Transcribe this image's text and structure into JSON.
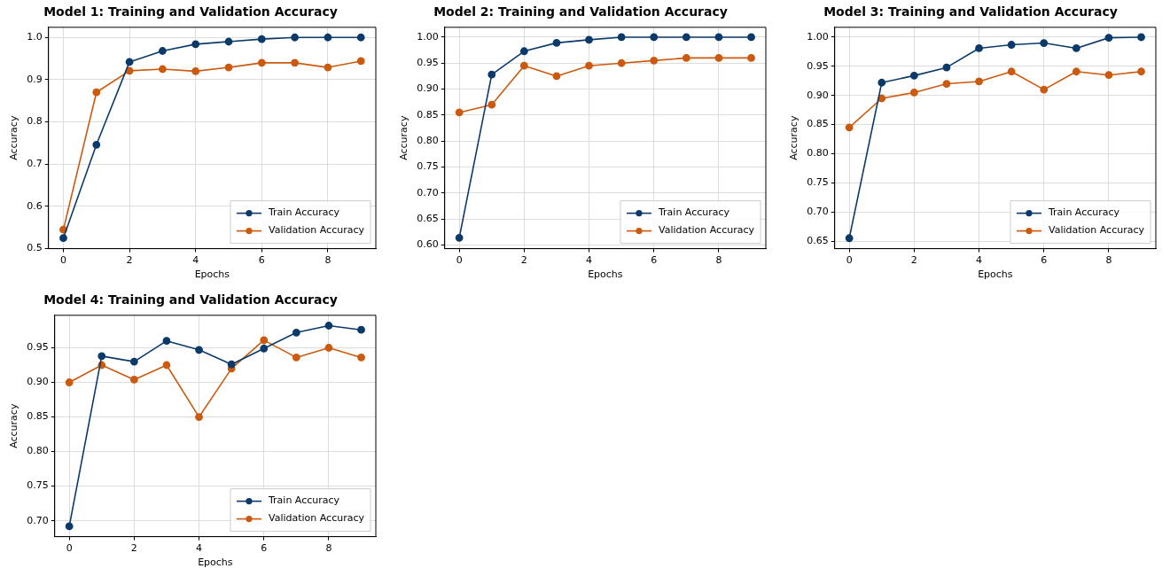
{
  "chart_data": [
    {
      "type": "line",
      "title": "Model 1: Training and Validation Accuracy",
      "xlabel": "Epochs",
      "ylabel": "Accuracy",
      "x": [
        0,
        1,
        2,
        3,
        4,
        5,
        6,
        7,
        8,
        9
      ],
      "series": [
        {
          "name": "Train Accuracy",
          "color": "#0b3a6a",
          "values": [
            0.525,
            0.746,
            0.942,
            0.968,
            0.984,
            0.99,
            0.996,
            1.0,
            1.0,
            1.0
          ]
        },
        {
          "name": "Validation Accuracy",
          "color": "#cc5a0e",
          "values": [
            0.545,
            0.87,
            0.921,
            0.925,
            0.92,
            0.929,
            0.94,
            0.94,
            0.929,
            0.944
          ]
        }
      ],
      "xlim": [
        -0.45,
        9.45
      ],
      "ylim": [
        0.5,
        1.024
      ],
      "xticks": [
        0,
        2,
        4,
        6,
        8
      ],
      "yticks": [
        {
          "value": 0.5,
          "label": "0.5"
        },
        {
          "value": 0.6,
          "label": "0.6"
        },
        {
          "value": 0.7,
          "label": "0.7"
        },
        {
          "value": 0.8,
          "label": "0.8"
        },
        {
          "value": 0.9,
          "label": "0.9"
        },
        {
          "value": 1.0,
          "label": "1.0"
        }
      ],
      "grid": true,
      "legend": "bottom right",
      "marker": "circle"
    },
    {
      "type": "line",
      "title": "Model 2: Training and Validation Accuracy",
      "xlabel": "Epochs",
      "ylabel": "Accuracy",
      "x": [
        0,
        1,
        2,
        3,
        4,
        5,
        6,
        7,
        8,
        9
      ],
      "series": [
        {
          "name": "Train Accuracy",
          "color": "#0b3a6a",
          "values": [
            0.614,
            0.928,
            0.973,
            0.989,
            0.995,
            1.0,
            1.0,
            1.0,
            1.0,
            1.0
          ]
        },
        {
          "name": "Validation Accuracy",
          "color": "#cc5a0e",
          "values": [
            0.855,
            0.87,
            0.945,
            0.925,
            0.945,
            0.95,
            0.955,
            0.96,
            0.96,
            0.96
          ]
        }
      ],
      "xlim": [
        -0.45,
        9.45
      ],
      "ylim": [
        0.593,
        1.019
      ],
      "xticks": [
        0,
        2,
        4,
        6,
        8
      ],
      "yticks": [
        {
          "value": 0.6,
          "label": "0.60"
        },
        {
          "value": 0.65,
          "label": "0.65"
        },
        {
          "value": 0.7,
          "label": "0.70"
        },
        {
          "value": 0.75,
          "label": "0.75"
        },
        {
          "value": 0.8,
          "label": "0.80"
        },
        {
          "value": 0.85,
          "label": "0.85"
        },
        {
          "value": 0.9,
          "label": "0.90"
        },
        {
          "value": 0.95,
          "label": "0.95"
        },
        {
          "value": 1.0,
          "label": "1.00"
        }
      ],
      "grid": true,
      "legend": "bottom right",
      "marker": "circle"
    },
    {
      "type": "line",
      "title": "Model 3: Training and Validation Accuracy",
      "xlabel": "Epochs",
      "ylabel": "Accuracy",
      "x": [
        0,
        1,
        2,
        3,
        4,
        5,
        6,
        7,
        8,
        9
      ],
      "series": [
        {
          "name": "Train Accuracy",
          "color": "#0b3a6a",
          "values": [
            0.655,
            0.922,
            0.934,
            0.948,
            0.981,
            0.987,
            0.99,
            0.981,
            0.999,
            1.0
          ]
        },
        {
          "name": "Validation Accuracy",
          "color": "#cc5a0e",
          "values": [
            0.845,
            0.895,
            0.905,
            0.92,
            0.924,
            0.941,
            0.91,
            0.941,
            0.935,
            0.941
          ]
        }
      ],
      "xlim": [
        -0.45,
        9.45
      ],
      "ylim": [
        0.637,
        1.017
      ],
      "xticks": [
        0,
        2,
        4,
        6,
        8
      ],
      "yticks": [
        {
          "value": 0.65,
          "label": "0.65"
        },
        {
          "value": 0.7,
          "label": "0.70"
        },
        {
          "value": 0.75,
          "label": "0.75"
        },
        {
          "value": 0.8,
          "label": "0.80"
        },
        {
          "value": 0.85,
          "label": "0.85"
        },
        {
          "value": 0.9,
          "label": "0.90"
        },
        {
          "value": 0.95,
          "label": "0.95"
        },
        {
          "value": 1.0,
          "label": "1.00"
        }
      ],
      "grid": true,
      "legend": "bottom right",
      "marker": "circle"
    },
    {
      "type": "line",
      "title": "Model 4: Training and Validation Accuracy",
      "xlabel": "Epochs",
      "ylabel": "Accuracy",
      "x": [
        0,
        1,
        2,
        3,
        4,
        5,
        6,
        7,
        8,
        9
      ],
      "series": [
        {
          "name": "Train Accuracy",
          "color": "#0b3a6a",
          "values": [
            0.692,
            0.938,
            0.93,
            0.96,
            0.947,
            0.926,
            0.949,
            0.972,
            0.982,
            0.976
          ]
        },
        {
          "name": "Validation Accuracy",
          "color": "#cc5a0e",
          "values": [
            0.9,
            0.925,
            0.904,
            0.925,
            0.85,
            0.92,
            0.961,
            0.936,
            0.95,
            0.936
          ]
        }
      ],
      "xlim": [
        -0.45,
        9.45
      ],
      "ylim": [
        0.677,
        0.997
      ],
      "xticks": [
        0,
        2,
        4,
        6,
        8
      ],
      "yticks": [
        {
          "value": 0.7,
          "label": "0.70"
        },
        {
          "value": 0.75,
          "label": "0.75"
        },
        {
          "value": 0.8,
          "label": "0.80"
        },
        {
          "value": 0.85,
          "label": "0.85"
        },
        {
          "value": 0.9,
          "label": "0.90"
        },
        {
          "value": 0.95,
          "label": "0.95"
        }
      ],
      "grid": true,
      "legend": "bottom right",
      "marker": "circle"
    }
  ]
}
